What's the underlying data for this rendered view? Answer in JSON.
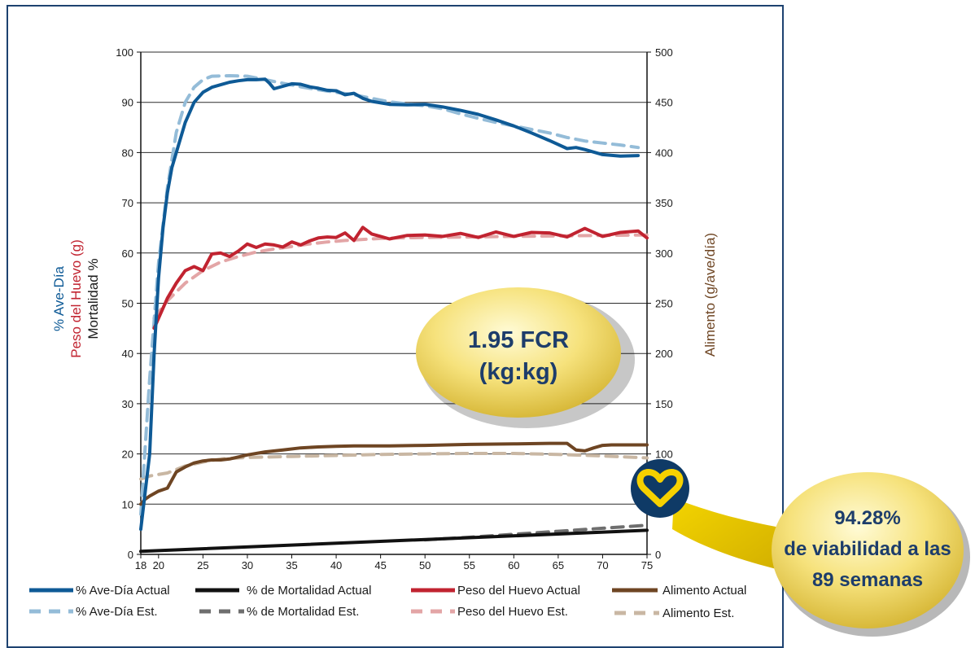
{
  "colors": {
    "frame": "#1d4270",
    "ave_actual": "#0e5a96",
    "ave_est": "#94bcd8",
    "mort_actual": "#111111",
    "mort_est": "#6e6e6e",
    "egg_actual": "#c12330",
    "egg_est": "#e3a5a6",
    "feed_actual": "#6e4523",
    "feed_est": "#c9b7a3",
    "bubble": "#f3e27a",
    "badge": "#0f3a66",
    "badge_heart": "#f6d100"
  },
  "callouts": {
    "fcr_line1": "1.95 FCR",
    "fcr_line2": "(kg:kg)",
    "viability_line1": "94.28%",
    "viability_line2": "de viabilidad a las",
    "viability_line3": "89 semanas",
    "badge_icon": "heart-icon"
  },
  "chart_data": {
    "type": "line",
    "title": "",
    "xlabel": "",
    "ylabel_left": [
      "% Ave-Día",
      "Peso del Huevo (g)",
      "Mortalidad %"
    ],
    "ylabel_right": "Alimento (g/ave/día)",
    "x_ticks": [
      18,
      20,
      25,
      30,
      35,
      40,
      45,
      50,
      55,
      60,
      65,
      70,
      75
    ],
    "xlim": [
      18,
      75
    ],
    "y_left_ticks": [
      0,
      10,
      20,
      30,
      40,
      50,
      60,
      70,
      80,
      90,
      100
    ],
    "ylim_left": [
      0,
      100
    ],
    "y_right_ticks": [
      0,
      50,
      100,
      150,
      200,
      250,
      300,
      350,
      400,
      450,
      500
    ],
    "ylim_right": [
      0,
      500
    ],
    "grid": "horizontal",
    "legend_placement": "bottom",
    "series": [
      {
        "key": "ave_actual",
        "name": "% Ave-Día Actual",
        "axis": "left",
        "dashed": false,
        "x": [
          18,
          19,
          19.5,
          20,
          20.5,
          21,
          21.5,
          22,
          23,
          24,
          25,
          26,
          27,
          28,
          29,
          30,
          31,
          32,
          32.5,
          33,
          34,
          35,
          36,
          37,
          38,
          39,
          40,
          41,
          42,
          43,
          44,
          46,
          48,
          50,
          52,
          54,
          56,
          58,
          60,
          62,
          64,
          66,
          67,
          68,
          70,
          72,
          74
        ],
        "y": [
          5,
          20,
          40,
          55,
          65,
          72,
          77,
          80,
          86,
          90,
          92,
          93,
          93.5,
          94,
          94.3,
          94.5,
          94.5,
          94.6,
          93.8,
          92.7,
          93.2,
          93.7,
          93.6,
          93.1,
          92.8,
          92.4,
          92.3,
          91.5,
          91.8,
          90.8,
          90.2,
          89.6,
          89.5,
          89.6,
          89.1,
          88.4,
          87.6,
          86.5,
          85.3,
          83.9,
          82.4,
          80.8,
          81.0,
          80.6,
          79.6,
          79.3,
          79.4
        ]
      },
      {
        "key": "ave_est",
        "name": "% Ave-Día Est.",
        "axis": "left",
        "dashed": true,
        "x": [
          18,
          19,
          20,
          21,
          22,
          23,
          24,
          25,
          26,
          28,
          30,
          32,
          34,
          36,
          38,
          40,
          42,
          44,
          46,
          48,
          50,
          52,
          54,
          56,
          58,
          60,
          62,
          64,
          66,
          68,
          70,
          72,
          74
        ],
        "y": [
          8,
          35,
          58,
          73,
          84,
          90,
          93,
          94.5,
          95.2,
          95.3,
          95.2,
          94.5,
          93.8,
          93.1,
          92.5,
          92.0,
          91.5,
          90.8,
          90.1,
          89.7,
          89.3,
          88.7,
          87.7,
          86.8,
          86.0,
          85.3,
          84.6,
          83.9,
          83.0,
          82.3,
          81.9,
          81.5,
          81.0
        ]
      },
      {
        "key": "egg_actual",
        "name": "Peso del Huevo Actual",
        "axis": "left",
        "dashed": false,
        "x": [
          19.5,
          20,
          21,
          22,
          23,
          24,
          25,
          26,
          27,
          28,
          29,
          30,
          31,
          32,
          33,
          34,
          35,
          36,
          37,
          38,
          39,
          40,
          41,
          42,
          43,
          44,
          45,
          46,
          48,
          50,
          52,
          54,
          56,
          58,
          60,
          62,
          64,
          66,
          68,
          70,
          72,
          74,
          75
        ],
        "y": [
          45,
          47,
          51,
          54,
          56.5,
          57.3,
          56.5,
          59.8,
          60,
          59.3,
          60.4,
          61.8,
          61.1,
          61.8,
          61.6,
          61.2,
          62.2,
          61.6,
          62.4,
          63,
          63.2,
          63.1,
          64,
          62.5,
          65.1,
          63.8,
          63.3,
          62.8,
          63.5,
          63.6,
          63.3,
          63.9,
          63.1,
          64.2,
          63.3,
          64.1,
          64,
          63.2,
          64.9,
          63.3,
          64.1,
          64.4,
          63.0
        ]
      },
      {
        "key": "egg_est",
        "name": "Peso del Huevo Est.",
        "axis": "left",
        "dashed": true,
        "x": [
          19.5,
          21,
          23,
          25,
          27,
          29,
          31,
          33,
          35,
          37,
          39,
          41,
          43,
          45,
          47,
          50,
          55,
          60,
          65,
          70,
          75
        ],
        "y": [
          47,
          50.5,
          54,
          56.5,
          58.2,
          59.3,
          60.2,
          60.8,
          61.3,
          61.8,
          62.2,
          62.5,
          62.7,
          62.9,
          63.0,
          63.1,
          63.2,
          63.3,
          63.4,
          63.5,
          63.6
        ]
      },
      {
        "key": "mort_actual",
        "name": "% de Mortalidad Actual",
        "axis": "left",
        "dashed": false,
        "x": [
          18,
          75
        ],
        "y": [
          0.6,
          4.8
        ]
      },
      {
        "key": "mort_est",
        "name": "% de Mortalidad Est.",
        "axis": "left",
        "dashed": true,
        "x": [
          50,
          55,
          60,
          65,
          70,
          75
        ],
        "y": [
          2.9,
          3.4,
          4.0,
          4.6,
          5.2,
          5.8
        ]
      },
      {
        "key": "feed_actual",
        "name": "Alimento Actual",
        "axis": "right",
        "dashed": false,
        "x": [
          18,
          18.5,
          19,
          20,
          21,
          22,
          23,
          24,
          25,
          26,
          27,
          28,
          29,
          30,
          32,
          34,
          36,
          38,
          40,
          42,
          44,
          46,
          50,
          55,
          60,
          64,
          66,
          67,
          68,
          69,
          70,
          71,
          72,
          73,
          75
        ],
        "y": [
          50,
          55,
          58,
          63,
          66,
          82,
          87,
          91,
          93,
          94,
          94,
          95,
          97,
          99,
          102,
          104,
          106,
          107,
          107.5,
          108,
          108,
          108,
          108.5,
          109.5,
          110,
          110.5,
          110.5,
          104,
          103,
          106,
          108.5,
          109,
          109,
          109,
          109
        ]
      },
      {
        "key": "feed_est",
        "name": "Alimento Est.",
        "axis": "right",
        "dashed": true,
        "x": [
          18,
          19,
          21,
          23,
          25,
          27,
          30,
          35,
          40,
          45,
          50,
          55,
          60,
          65,
          70,
          75
        ],
        "y": [
          75,
          78,
          81,
          88,
          92,
          95,
          96.5,
          97.5,
          98.5,
          99.5,
          100,
          100.5,
          100.5,
          99.5,
          98,
          96
        ]
      }
    ],
    "legend": {
      "row1": [
        "% Ave-Día Actual",
        "% de Mortalidad Actual",
        "Peso del Huevo Actual",
        "Alimento Actual"
      ],
      "row2": [
        "% Ave-Día Est.",
        "% de Mortalidad Est.",
        "Peso del Huevo Est.",
        "Alimento Est."
      ]
    }
  }
}
